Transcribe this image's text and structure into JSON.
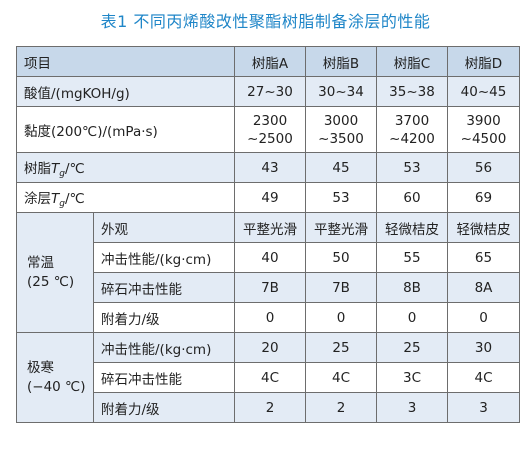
{
  "caption": "表1 不同丙烯酸改性聚酯树脂制备涂层的性能",
  "header": [
    "项目",
    "树脂A",
    "树脂B",
    "树脂C",
    "树脂D"
  ],
  "rows": {
    "acid": {
      "label": "酸值/(mgKOH/g)",
      "values": [
        "27~30",
        "30~34",
        "35~38",
        "40~45"
      ]
    },
    "viscosity": {
      "label": "黏度(200℃)/(mPa·s)",
      "values": [
        [
          "2300",
          "~2500"
        ],
        [
          "3000",
          "~3500"
        ],
        [
          "3700",
          "~4200"
        ],
        [
          "3900",
          "~4500"
        ]
      ]
    },
    "resin_tg": {
      "label_pre": "树脂",
      "label_T": "T",
      "label_g": "g",
      "label_post": "/℃",
      "values": [
        "43",
        "45",
        "53",
        "56"
      ]
    },
    "coat_tg": {
      "label_pre": "涂层",
      "label_T": "T",
      "label_g": "g",
      "label_post": "/℃",
      "values": [
        "49",
        "53",
        "60",
        "69"
      ]
    }
  },
  "normal": {
    "group_line1": "常温",
    "group_line2": "(25 ℃)",
    "items": [
      {
        "label": "外观",
        "values": [
          "平整光滑",
          "平整光滑",
          "轻微桔皮",
          "轻微桔皮"
        ]
      },
      {
        "label": "冲击性能/(kg·cm)",
        "values": [
          "40",
          "50",
          "55",
          "65"
        ]
      },
      {
        "label": "碎石冲击性能",
        "values": [
          "7B",
          "7B",
          "8B",
          "8A"
        ]
      },
      {
        "label": "附着力/级",
        "values": [
          "0",
          "0",
          "0",
          "0"
        ]
      }
    ]
  },
  "cold": {
    "group_line1": "极寒",
    "group_line2": "(−40 ℃)",
    "items": [
      {
        "label": "冲击性能/(kg·cm)",
        "values": [
          "20",
          "25",
          "25",
          "30"
        ]
      },
      {
        "label": "碎石冲击性能",
        "values": [
          "4C",
          "4C",
          "3C",
          "4C"
        ]
      },
      {
        "label": "附着力/级",
        "values": [
          "2",
          "2",
          "3",
          "3"
        ]
      }
    ]
  },
  "colors": {
    "caption": "#1f86c8",
    "header_bg": "#c7d8ea",
    "band_bg": "#e3ebf5",
    "border": "#6d6d6d"
  }
}
